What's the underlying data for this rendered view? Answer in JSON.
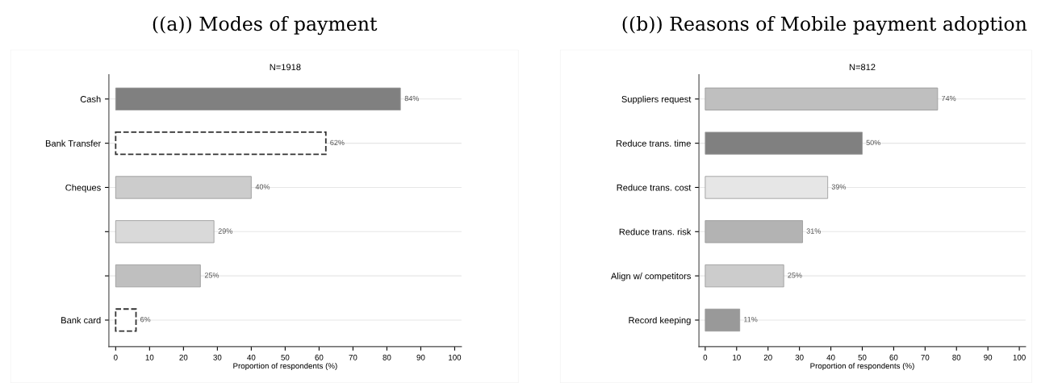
{
  "chart_data": [
    {
      "type": "bar",
      "orientation": "horizontal",
      "title": "((a)) Modes of payment",
      "subtitle": "N=1918",
      "xlabel": "Proportion of respondents (%)",
      "categories": [
        "Cash",
        "Bank Transfer",
        "Cheques",
        null,
        null,
        "Bank card"
      ],
      "values": [
        84,
        62,
        40,
        29,
        25,
        6
      ],
      "value_labels": [
        "84%",
        "62%",
        "40%",
        "29%",
        "25%",
        "6%"
      ],
      "colors": [
        "#808080",
        "#ffffff",
        "#cccccc",
        "#d9d9d9",
        "#bfbfbf",
        "#ffffff"
      ],
      "xlim": [
        -2,
        102
      ],
      "xticks": [
        0,
        10,
        20,
        30,
        40,
        50,
        60,
        70,
        80,
        90,
        100
      ],
      "grid": "y"
    },
    {
      "type": "bar",
      "orientation": "horizontal",
      "title": "((b)) Reasons of Mobile payment adoption",
      "subtitle": "N=812",
      "xlabel": "Proportion of respondents (%)",
      "categories": [
        "Suppliers request",
        "Reduce trans. time",
        "Reduce trans. cost",
        "Reduce trans. risk",
        "Align w/ competitors",
        "Record keeping"
      ],
      "values": [
        74,
        50,
        39,
        31,
        25,
        11
      ],
      "value_labels": [
        "74%",
        "50%",
        "39%",
        "31%",
        "25%",
        "11%"
      ],
      "colors": [
        "#bfbfbf",
        "#808080",
        "#e6e6e6",
        "#b3b3b3",
        "#cccccc",
        "#999999"
      ],
      "xlim": [
        -2,
        102
      ],
      "xticks": [
        0,
        10,
        20,
        30,
        40,
        50,
        60,
        70,
        80,
        90,
        100
      ],
      "grid": "y"
    }
  ]
}
